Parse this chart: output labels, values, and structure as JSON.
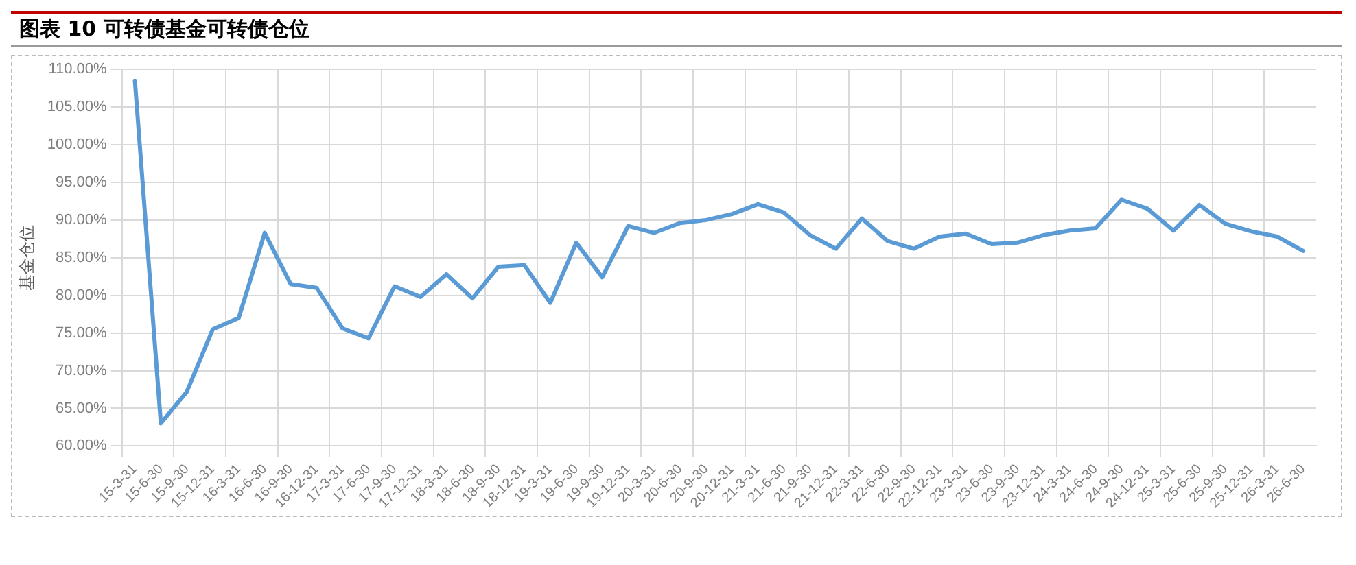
{
  "chart_data": {
    "type": "line",
    "title": "图表 10 可转债基金可转债仓位",
    "ylabel": "基金仓位",
    "categories": [
      "15-3-31",
      "15-6-30",
      "15-9-30",
      "15-12-31",
      "16-3-31",
      "16-6-30",
      "16-9-30",
      "16-12-31",
      "17-3-31",
      "17-6-30",
      "17-9-30",
      "17-12-31",
      "18-3-31",
      "18-6-30",
      "18-9-30",
      "18-12-31",
      "19-3-31",
      "19-6-30",
      "19-9-30",
      "19-12-31",
      "20-3-31",
      "20-6-30",
      "20-9-30",
      "20-12-31",
      "21-3-31",
      "21-6-30",
      "21-9-30",
      "21-12-31",
      "22-3-31",
      "22-6-30",
      "22-9-30",
      "22-12-31",
      "23-3-31",
      "23-6-30",
      "23-9-30",
      "23-12-31",
      "24-3-31",
      "24-6-30",
      "24-9-30",
      "24-12-31",
      "25-3-31",
      "25-6-30",
      "25-9-30",
      "25-12-31",
      "26-3-31",
      "26-6-30"
    ],
    "series": [
      {
        "color": "#5b9bd5",
        "values": [
          108.5,
          63.0,
          67.2,
          75.5,
          77.0,
          88.3,
          81.5,
          81.0,
          75.6,
          74.3,
          81.2,
          79.8,
          82.8,
          79.6,
          83.8,
          84.0,
          79.0,
          87.0,
          82.4,
          89.2,
          88.3,
          89.6,
          90.0,
          90.8,
          92.1,
          91.0,
          88.0,
          86.2,
          90.2,
          87.2,
          86.2,
          87.8,
          88.2,
          86.8,
          87.0,
          88.0,
          88.6,
          88.9,
          92.7,
          91.5,
          88.6,
          92.0,
          89.5,
          88.5,
          87.8,
          85.9
        ]
      }
    ],
    "ylim": [
      60,
      110
    ],
    "yticks": [
      {
        "value": 60,
        "label": "60.00%"
      },
      {
        "value": 65,
        "label": "65.00%"
      },
      {
        "value": 70,
        "label": "70.00%"
      },
      {
        "value": 75,
        "label": "75.00%"
      },
      {
        "value": 80,
        "label": "80.00%"
      },
      {
        "value": 85,
        "label": "85.00%"
      },
      {
        "value": 90,
        "label": "90.00%"
      },
      {
        "value": 95,
        "label": "95.00%"
      },
      {
        "value": 100,
        "label": "100.00%"
      },
      {
        "value": 105,
        "label": "105.00%"
      },
      {
        "value": 110,
        "label": "110.00%"
      }
    ],
    "grid": true,
    "legend": false,
    "marker": "none",
    "line_style": "solid"
  }
}
